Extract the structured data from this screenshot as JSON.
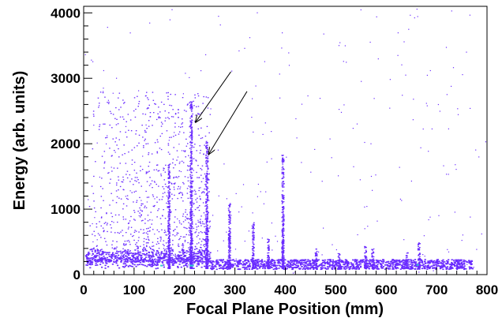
{
  "chart_data": {
    "type": "heatmap",
    "title": "",
    "xlabel": "Focal Plane Position (mm)",
    "ylabel": "Energy (arb. units)",
    "xlim": [
      0,
      800
    ],
    "ylim": [
      0,
      4100
    ],
    "x_ticks": [
      0,
      100,
      200,
      300,
      400,
      500,
      600,
      700,
      800
    ],
    "x_tick_labels": [
      "0",
      "100",
      "200",
      "300",
      "400",
      "500",
      "600",
      "700",
      "800"
    ],
    "y_ticks": [
      0,
      1000,
      2000,
      3000,
      4000
    ],
    "y_tick_labels": [
      "0",
      "1000",
      "2000",
      "3000",
      "4000"
    ],
    "grid": false,
    "legend": "none",
    "marker_color": "#6a2cff",
    "hot_color": "#2fd0d0",
    "description_of_features": "dense band at E≈100-250 across x 0-770; broad diffuse cloud x 20-240 up to E≈2600; vertical lines at listed x positions",
    "vertical_lines": [
      {
        "x": 168,
        "emax": 1600
      },
      {
        "x": 212,
        "emax": 2550
      },
      {
        "x": 243,
        "emax": 1950
      },
      {
        "x": 288,
        "emax": 1000
      },
      {
        "x": 335,
        "emax": 700
      },
      {
        "x": 365,
        "emax": 450
      },
      {
        "x": 394,
        "emax": 1750
      },
      {
        "x": 460,
        "emax": 300
      },
      {
        "x": 505,
        "emax": 250
      },
      {
        "x": 558,
        "emax": 350
      },
      {
        "x": 572,
        "emax": 300
      },
      {
        "x": 640,
        "emax": 250
      },
      {
        "x": 664,
        "emax": 400
      }
    ],
    "annotations": [
      {
        "type": "arrow",
        "from": [
          292,
          3100
        ],
        "to": [
          222,
          2330
        ]
      },
      {
        "type": "arrow",
        "from": [
          324,
          2800
        ],
        "to": [
          248,
          1840
        ]
      }
    ]
  }
}
